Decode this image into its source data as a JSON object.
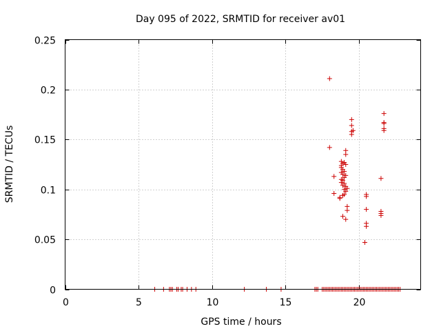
{
  "chart_data": {
    "type": "scatter",
    "title": "Day 095 of 2022, SRMTID for receiver av01",
    "xlabel": "GPS time / hours",
    "ylabel": "SRMTID / TECUs",
    "xlim": [
      0,
      24.2
    ],
    "ylim": [
      0,
      0.25
    ],
    "xticks": [
      0,
      5,
      10,
      15,
      20
    ],
    "xtick_labels": [
      "0",
      "5",
      "10",
      "15",
      "20"
    ],
    "yticks": [
      0,
      0.05,
      0.1,
      0.15,
      0.2,
      0.25
    ],
    "ytick_labels": [
      "0",
      "0.05",
      "0.1",
      "0.15",
      "0.2",
      "0.25"
    ],
    "grid": true,
    "marker": "+",
    "color": "#cc0000",
    "series": [
      {
        "name": "av01",
        "points": [
          [
            6.1,
            0
          ],
          [
            6.7,
            0
          ],
          [
            7.1,
            0
          ],
          [
            7.2,
            0
          ],
          [
            7.3,
            0
          ],
          [
            7.6,
            0
          ],
          [
            7.7,
            0
          ],
          [
            7.9,
            0
          ],
          [
            8.0,
            0
          ],
          [
            8.3,
            0
          ],
          [
            8.6,
            0
          ],
          [
            8.9,
            0
          ],
          [
            12.2,
            0
          ],
          [
            13.7,
            0
          ],
          [
            14.7,
            0
          ],
          [
            17.0,
            0
          ],
          [
            17.1,
            0
          ],
          [
            17.2,
            0
          ],
          [
            17.5,
            0
          ],
          [
            17.6,
            0
          ],
          [
            17.7,
            0
          ],
          [
            17.8,
            0
          ],
          [
            17.9,
            0
          ],
          [
            18.0,
            0
          ],
          [
            18.1,
            0
          ],
          [
            18.2,
            0
          ],
          [
            18.3,
            0
          ],
          [
            18.4,
            0
          ],
          [
            18.5,
            0
          ],
          [
            18.6,
            0
          ],
          [
            18.7,
            0
          ],
          [
            18.8,
            0
          ],
          [
            18.9,
            0
          ],
          [
            19.0,
            0
          ],
          [
            19.1,
            0
          ],
          [
            19.2,
            0
          ],
          [
            19.3,
            0
          ],
          [
            19.4,
            0
          ],
          [
            19.5,
            0
          ],
          [
            19.6,
            0
          ],
          [
            19.7,
            0
          ],
          [
            19.8,
            0
          ],
          [
            19.9,
            0
          ],
          [
            20.0,
            0
          ],
          [
            20.1,
            0
          ],
          [
            20.2,
            0
          ],
          [
            20.3,
            0
          ],
          [
            20.4,
            0
          ],
          [
            20.5,
            0
          ],
          [
            20.6,
            0
          ],
          [
            20.7,
            0
          ],
          [
            20.8,
            0
          ],
          [
            20.9,
            0
          ],
          [
            21.0,
            0
          ],
          [
            21.1,
            0
          ],
          [
            21.2,
            0
          ],
          [
            21.3,
            0
          ],
          [
            21.4,
            0
          ],
          [
            21.5,
            0
          ],
          [
            21.6,
            0
          ],
          [
            21.7,
            0
          ],
          [
            21.8,
            0
          ],
          [
            21.9,
            0
          ],
          [
            22.0,
            0
          ],
          [
            22.1,
            0
          ],
          [
            22.2,
            0
          ],
          [
            22.3,
            0
          ],
          [
            22.4,
            0
          ],
          [
            22.5,
            0
          ],
          [
            22.6,
            0
          ],
          [
            22.7,
            0
          ],
          [
            22.8,
            0
          ],
          [
            18.0,
            0.211
          ],
          [
            18.0,
            0.142
          ],
          [
            18.3,
            0.113
          ],
          [
            18.3,
            0.096
          ],
          [
            18.7,
            0.092
          ],
          [
            18.7,
            0.091
          ],
          [
            18.8,
            0.128
          ],
          [
            18.8,
            0.124
          ],
          [
            18.8,
            0.122
          ],
          [
            18.8,
            0.117
          ],
          [
            18.8,
            0.11
          ],
          [
            18.8,
            0.107
          ],
          [
            18.9,
            0.126
          ],
          [
            18.9,
            0.12
          ],
          [
            18.9,
            0.115
          ],
          [
            18.9,
            0.109
          ],
          [
            18.9,
            0.104
          ],
          [
            18.9,
            0.094
          ],
          [
            18.9,
            0.073
          ],
          [
            19.0,
            0.127
          ],
          [
            19.0,
            0.118
          ],
          [
            19.0,
            0.112
          ],
          [
            19.0,
            0.106
          ],
          [
            19.0,
            0.1
          ],
          [
            19.0,
            0.095
          ],
          [
            19.1,
            0.139
          ],
          [
            19.1,
            0.135
          ],
          [
            19.1,
            0.125
          ],
          [
            19.1,
            0.114
          ],
          [
            19.1,
            0.103
          ],
          [
            19.1,
            0.098
          ],
          [
            19.1,
            0.07
          ],
          [
            19.2,
            0.101
          ],
          [
            19.2,
            0.083
          ],
          [
            19.2,
            0.079
          ],
          [
            19.5,
            0.17
          ],
          [
            19.5,
            0.164
          ],
          [
            19.5,
            0.158
          ],
          [
            19.5,
            0.155
          ],
          [
            19.6,
            0.159
          ],
          [
            20.5,
            0.095
          ],
          [
            20.5,
            0.093
          ],
          [
            20.5,
            0.08
          ],
          [
            20.5,
            0.066
          ],
          [
            20.5,
            0.063
          ],
          [
            20.4,
            0.047
          ],
          [
            21.5,
            0.111
          ],
          [
            21.5,
            0.078
          ],
          [
            21.5,
            0.076
          ],
          [
            21.5,
            0.074
          ],
          [
            21.7,
            0.176
          ],
          [
            21.7,
            0.167
          ],
          [
            21.7,
            0.166
          ],
          [
            21.7,
            0.161
          ],
          [
            21.7,
            0.159
          ]
        ]
      }
    ]
  }
}
